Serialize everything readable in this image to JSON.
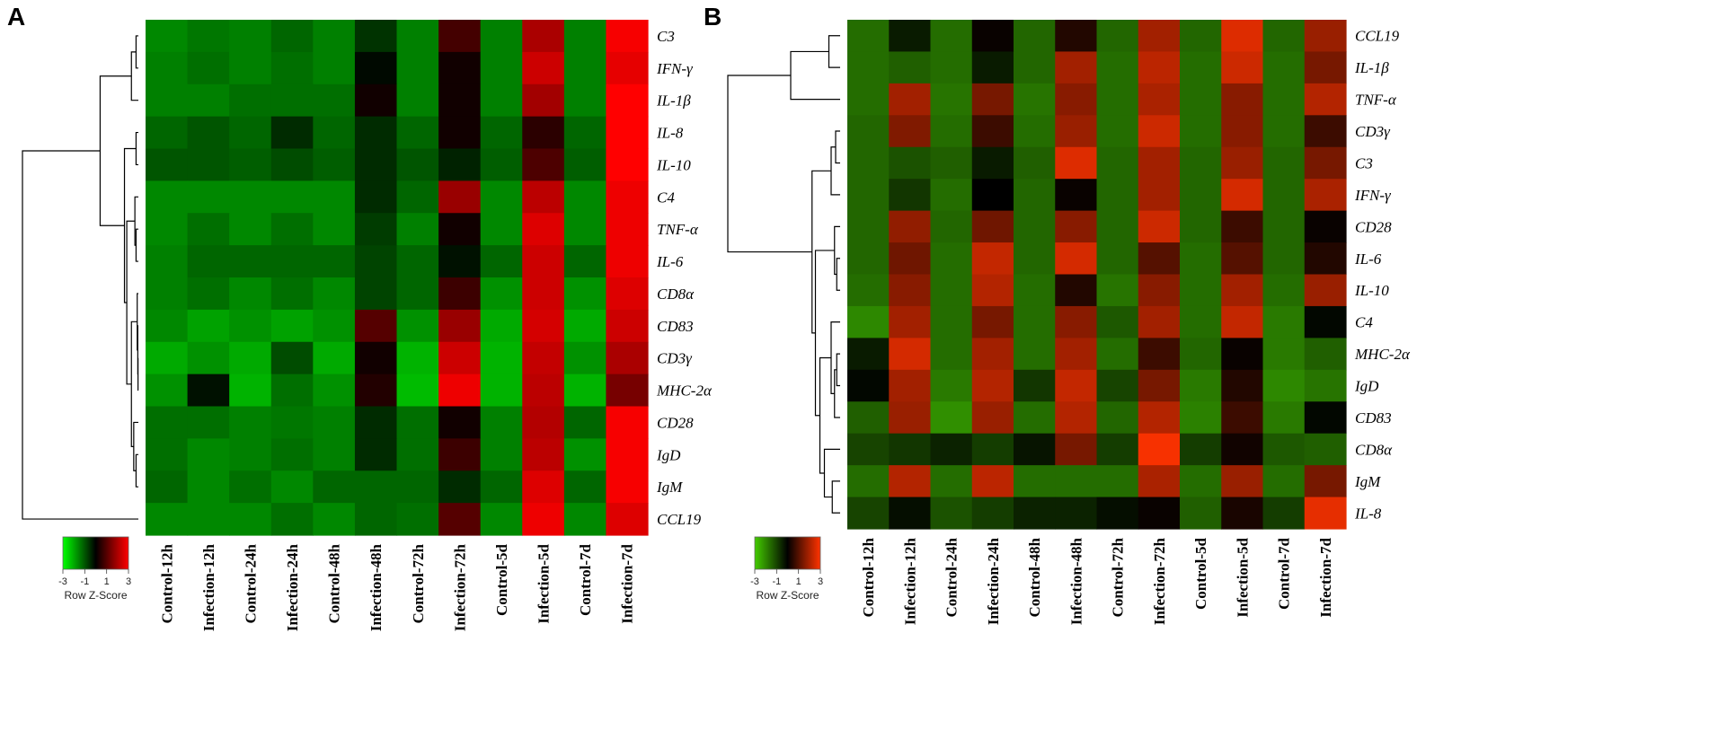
{
  "chart_data": [
    {
      "type": "heatmap",
      "panel_label": "A",
      "title": "",
      "key_title": "Row Z-Score",
      "key_ticks": [
        "-3",
        "-1",
        "1",
        "3"
      ],
      "value_range": [
        -3,
        3
      ],
      "colors": {
        "low": "#00ff00",
        "mid": "#000000",
        "high": "#ff0000"
      },
      "columns": [
        "Control-12h",
        "Infection-12h",
        "Control-24h",
        "Infection-24h",
        "Control-48h",
        "Infection-48h",
        "Control-72h",
        "Infection-72h",
        "Control-5d",
        "Infection-5d",
        "Control-7d",
        "Infection-7d"
      ],
      "rows": [
        "C3",
        "IFN-γ",
        "IL-1β",
        "IL-8",
        "IL-10",
        "C4",
        "TNF-α",
        "IL-6",
        "CD8α",
        "CD83",
        "CD3γ",
        "MHC-2α",
        "CD28",
        "IgD",
        "IgM",
        "CCL19"
      ],
      "values": [
        [
          -1.6,
          -1.4,
          -1.5,
          -1.2,
          -1.5,
          -0.6,
          -1.5,
          0.8,
          -1.5,
          2.0,
          -1.5,
          2.9
        ],
        [
          -1.5,
          -1.3,
          -1.5,
          -1.3,
          -1.5,
          -0.1,
          -1.5,
          0.2,
          -1.5,
          2.4,
          -1.5,
          2.7
        ],
        [
          -1.5,
          -1.5,
          -1.3,
          -1.3,
          -1.3,
          0.2,
          -1.5,
          0.2,
          -1.5,
          1.9,
          -1.5,
          3.0
        ],
        [
          -1.2,
          -1.0,
          -1.2,
          -0.5,
          -1.2,
          -0.5,
          -1.2,
          0.2,
          -1.2,
          0.5,
          -1.2,
          3.0
        ],
        [
          -1.0,
          -1.0,
          -1.1,
          -0.9,
          -1.1,
          -0.5,
          -1.0,
          -0.4,
          -1.1,
          0.9,
          -1.1,
          3.0
        ],
        [
          -1.6,
          -1.6,
          -1.6,
          -1.6,
          -1.6,
          -0.5,
          -1.2,
          1.8,
          -1.6,
          2.2,
          -1.6,
          2.8
        ],
        [
          -1.6,
          -1.3,
          -1.6,
          -1.3,
          -1.6,
          -0.7,
          -1.5,
          0.2,
          -1.6,
          2.6,
          -1.6,
          2.8
        ],
        [
          -1.5,
          -1.2,
          -1.2,
          -1.2,
          -1.2,
          -0.8,
          -1.2,
          -0.2,
          -1.2,
          2.4,
          -1.2,
          2.8
        ],
        [
          -1.5,
          -1.3,
          -1.6,
          -1.3,
          -1.6,
          -0.8,
          -1.2,
          0.7,
          -1.7,
          2.4,
          -1.7,
          2.6
        ],
        [
          -1.6,
          -1.9,
          -1.7,
          -1.9,
          -1.7,
          1.0,
          -1.7,
          1.8,
          -2.0,
          2.5,
          -2.0,
          2.4
        ],
        [
          -2.0,
          -1.7,
          -2.0,
          -0.9,
          -2.0,
          0.2,
          -2.1,
          2.4,
          -2.1,
          2.3,
          -1.7,
          2.0
        ],
        [
          -1.7,
          -0.2,
          -2.1,
          -1.3,
          -1.7,
          0.4,
          -2.2,
          2.8,
          -2.1,
          2.2,
          -2.1,
          1.4
        ],
        [
          -1.3,
          -1.3,
          -1.5,
          -1.4,
          -1.5,
          -0.5,
          -1.3,
          0.2,
          -1.5,
          2.1,
          -1.2,
          2.9
        ],
        [
          -1.3,
          -1.6,
          -1.5,
          -1.3,
          -1.5,
          -0.5,
          -1.3,
          0.7,
          -1.5,
          2.2,
          -1.7,
          2.9
        ],
        [
          -1.2,
          -1.6,
          -1.3,
          -1.6,
          -1.2,
          -1.2,
          -1.2,
          -0.5,
          -1.2,
          2.6,
          -1.2,
          2.9
        ],
        [
          -1.6,
          -1.6,
          -1.6,
          -1.3,
          -1.6,
          -1.2,
          -1.3,
          1.0,
          -1.6,
          2.8,
          -1.6,
          2.6
        ]
      ]
    },
    {
      "type": "heatmap",
      "panel_label": "B",
      "title": "",
      "key_title": "Row Z-Score",
      "key_ticks": [
        "-3",
        "-1",
        "1",
        "3"
      ],
      "value_range": [
        -3,
        3
      ],
      "colors": {
        "low": "#44cc00",
        "mid": "#000000",
        "high": "#ff3300"
      },
      "columns": [
        "Control-12h",
        "Infection-12h",
        "Control-24h",
        "Infection-24h",
        "Control-48h",
        "Infection-48h",
        "Control-72h",
        "Infection-72h",
        "Control-5d",
        "Infection-5d",
        "Control-7d",
        "Infection-7d"
      ],
      "rows": [
        "CCL19",
        "IL-1β",
        "TNF-α",
        "CD3γ",
        "C3",
        "IFN-γ",
        "CD28",
        "IL-6",
        "IL-10",
        "C4",
        "MHC-2α",
        "IgD",
        "CD83",
        "CD8α",
        "IgM",
        "IL-8"
      ],
      "values": [
        [
          -1.6,
          -0.4,
          -1.6,
          0.1,
          -1.5,
          0.4,
          -1.5,
          1.9,
          -1.5,
          2.6,
          -1.5,
          1.8
        ],
        [
          -1.6,
          -1.4,
          -1.6,
          -0.4,
          -1.5,
          1.9,
          -1.6,
          2.2,
          -1.6,
          2.4,
          -1.6,
          1.4
        ],
        [
          -1.6,
          1.9,
          -1.7,
          1.4,
          -1.7,
          1.6,
          -1.6,
          2.0,
          -1.6,
          1.6,
          -1.6,
          2.1
        ],
        [
          -1.5,
          1.5,
          -1.6,
          0.7,
          -1.6,
          1.8,
          -1.6,
          2.4,
          -1.6,
          1.6,
          -1.6,
          0.7
        ],
        [
          -1.5,
          -1.2,
          -1.4,
          -0.4,
          -1.4,
          2.6,
          -1.5,
          1.9,
          -1.5,
          1.8,
          -1.5,
          1.4
        ],
        [
          -1.5,
          -0.8,
          -1.6,
          0.0,
          -1.5,
          0.1,
          -1.5,
          1.9,
          -1.5,
          2.5,
          -1.5,
          2.0
        ],
        [
          -1.5,
          1.7,
          -1.5,
          1.3,
          -1.5,
          1.6,
          -1.5,
          2.4,
          -1.5,
          0.7,
          -1.5,
          0.1
        ],
        [
          -1.5,
          1.3,
          -1.6,
          2.3,
          -1.5,
          2.5,
          -1.5,
          1.0,
          -1.6,
          1.0,
          -1.5,
          0.4
        ],
        [
          -1.6,
          1.6,
          -1.6,
          2.1,
          -1.6,
          0.4,
          -1.7,
          1.6,
          -1.6,
          1.9,
          -1.6,
          1.8
        ],
        [
          -2.0,
          1.9,
          -1.6,
          1.4,
          -1.6,
          1.6,
          -1.3,
          1.9,
          -1.6,
          2.3,
          -1.8,
          -0.1
        ],
        [
          -0.4,
          2.5,
          -1.6,
          1.9,
          -1.6,
          1.9,
          -1.6,
          0.7,
          -1.5,
          0.1,
          -1.8,
          -1.4
        ],
        [
          -0.1,
          1.9,
          -1.8,
          2.1,
          -0.8,
          2.3,
          -1.0,
          1.4,
          -1.8,
          0.4,
          -2.0,
          -1.7
        ],
        [
          -1.4,
          1.8,
          -2.1,
          1.8,
          -1.6,
          2.1,
          -1.5,
          2.1,
          -1.9,
          0.7,
          -1.8,
          -0.1
        ],
        [
          -1.0,
          -0.8,
          -0.5,
          -0.9,
          -0.3,
          1.4,
          -0.9,
          2.9,
          -0.9,
          0.2,
          -1.3,
          -1.4
        ],
        [
          -1.6,
          2.1,
          -1.6,
          2.2,
          -1.6,
          -1.6,
          -1.6,
          2.0,
          -1.6,
          1.8,
          -1.6,
          1.4
        ],
        [
          -1.0,
          -0.2,
          -1.2,
          -0.9,
          -0.5,
          -0.5,
          -0.2,
          0.1,
          -1.4,
          0.3,
          -0.9,
          2.7
        ]
      ]
    }
  ]
}
